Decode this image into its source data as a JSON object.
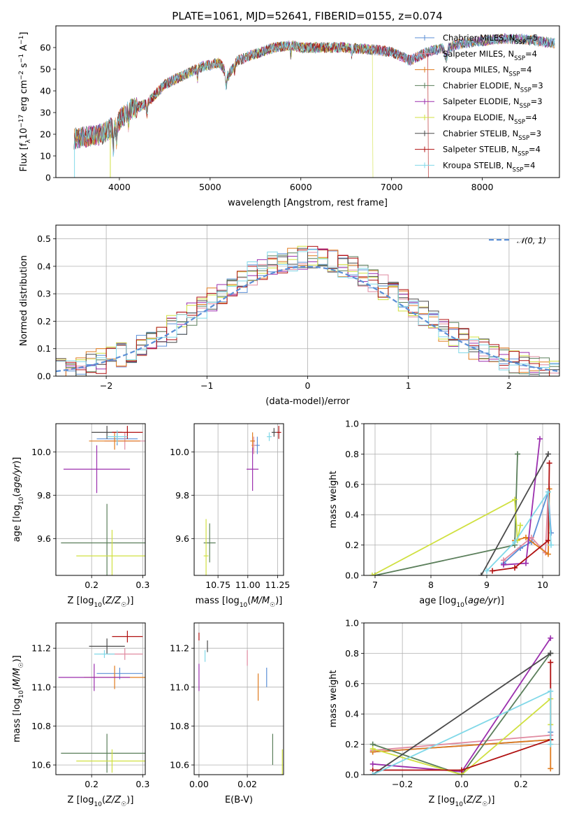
{
  "title": "PLATE=1061, MJD=52641, FIBERID=0155, z=0.074",
  "colors": {
    "chabrier_miles": "#5b8fd6",
    "salpeter_miles": "#e08aa0",
    "kroupa_miles": "#e07b1e",
    "chabrier_elodie": "#5a7e5a",
    "salpeter_elodie": "#9b2fae",
    "kroupa_elodie": "#d0e040",
    "chabrier_stelib": "#4a4a4a",
    "salpeter_stelib": "#b01010",
    "kroupa_stelib": "#80d8e8",
    "normal": "#5b8fd6"
  },
  "legend": [
    {
      "label": "Chabrier MILES, N",
      "sub": "SSP",
      "suffix": "=5",
      "color": "#5b8fd6"
    },
    {
      "label": "Salpeter MILES, N",
      "sub": "SSP",
      "suffix": "=4",
      "color": "#e08aa0"
    },
    {
      "label": "Kroupa MILES, N",
      "sub": "SSP",
      "suffix": "=4",
      "color": "#e07b1e"
    },
    {
      "label": "Chabrier ELODIE, N",
      "sub": "SSP",
      "suffix": "=3",
      "color": "#5a7e5a"
    },
    {
      "label": "Salpeter ELODIE, N",
      "sub": "SSP",
      "suffix": "=3",
      "color": "#9b2fae"
    },
    {
      "label": "Kroupa ELODIE, N",
      "sub": "SSP",
      "suffix": "=4",
      "color": "#d0e040"
    },
    {
      "label": "Chabrier STELIB, N",
      "sub": "SSP",
      "suffix": "=3",
      "color": "#4a4a4a"
    },
    {
      "label": "Salpeter STELIB, N",
      "sub": "SSP",
      "suffix": "=4",
      "color": "#b01010"
    },
    {
      "label": "Kroupa STELIB, N",
      "sub": "SSP",
      "suffix": "=4",
      "color": "#80d8e8"
    }
  ],
  "normal_label": "𝒩(0, 1)",
  "chart_data": [
    {
      "id": "spectrum",
      "type": "line",
      "xlabel": "wavelength [Angstrom, rest frame]",
      "ylabel": "Flux [f_λ10^-17 erg cm^-2 s^-1 A^-1]",
      "xlim": [
        3300,
        8850
      ],
      "ylim": [
        0,
        70
      ],
      "xticks": [
        4000,
        5000,
        6000,
        7000,
        8000
      ],
      "yticks": [
        0,
        10,
        20,
        30,
        40,
        50,
        60
      ],
      "grid": false,
      "legend_position": "right",
      "continuum": [
        [
          3500,
          18
        ],
        [
          3800,
          20
        ],
        [
          3950,
          24
        ],
        [
          4100,
          31
        ],
        [
          4300,
          34
        ],
        [
          4500,
          43
        ],
        [
          4700,
          47
        ],
        [
          4900,
          51
        ],
        [
          5100,
          53
        ],
        [
          5200,
          47
        ],
        [
          5300,
          54
        ],
        [
          5500,
          57
        ],
        [
          5700,
          60
        ],
        [
          5900,
          61
        ],
        [
          6000,
          60
        ],
        [
          6300,
          60
        ],
        [
          6500,
          60
        ],
        [
          6800,
          59
        ],
        [
          7000,
          58
        ],
        [
          7200,
          54
        ],
        [
          7400,
          58
        ],
        [
          7600,
          60
        ],
        [
          7800,
          62
        ],
        [
          8000,
          63
        ],
        [
          8200,
          64
        ],
        [
          8400,
          64
        ],
        [
          8600,
          63
        ],
        [
          8800,
          62
        ]
      ]
    },
    {
      "id": "residual_hist",
      "type": "histogram",
      "xlabel": "(data-model)/error",
      "ylabel": "Normed distribution",
      "xlim": [
        -2.5,
        2.5
      ],
      "ylim": [
        0,
        0.55
      ],
      "xticks": [
        -2,
        -1,
        0,
        1,
        2
      ],
      "yticks": [
        0,
        0.1,
        0.2,
        0.3,
        0.4,
        0.5
      ],
      "grid": true,
      "legend_position": "top-right",
      "bin_width": 0.1,
      "normal_mean": 0,
      "normal_sigma": 1
    },
    {
      "id": "age_vs_Z",
      "type": "errorbar",
      "xlabel": "Z [log10(Z/Z☉)]",
      "ylabel": "age  [log10(age/yr)]",
      "xlim": [
        0.13,
        0.305
      ],
      "ylim": [
        9.43,
        10.13
      ],
      "xticks": [
        0.2,
        0.3
      ],
      "yticks": [
        9.6,
        9.8,
        10.0
      ],
      "grid": true,
      "points": [
        {
          "series": "chabrier_miles",
          "x": 0.25,
          "xerr": 0.04,
          "y": 10.06,
          "yerr": 0.03
        },
        {
          "series": "salpeter_miles",
          "x": 0.265,
          "xerr": 0.04,
          "y": 10.05,
          "yerr": 0.04
        },
        {
          "series": "kroupa_miles",
          "x": 0.245,
          "xerr": 0.05,
          "y": 10.05,
          "yerr": 0.04
        },
        {
          "series": "chabrier_elodie",
          "x": 0.23,
          "xerr": 0.09,
          "y": 9.58,
          "yerr": 0.18
        },
        {
          "series": "salpeter_elodie",
          "x": 0.21,
          "xerr": 0.065,
          "y": 9.92,
          "yerr": 0.11
        },
        {
          "series": "kroupa_elodie",
          "x": 0.24,
          "xerr": 0.07,
          "y": 9.52,
          "yerr": 0.12
        },
        {
          "series": "chabrier_stelib",
          "x": 0.23,
          "xerr": 0.03,
          "y": 10.09,
          "yerr": 0.03
        },
        {
          "series": "salpeter_stelib",
          "x": 0.27,
          "xerr": 0.03,
          "y": 10.09,
          "yerr": 0.03
        },
        {
          "series": "kroupa_stelib",
          "x": 0.25,
          "xerr": 0.02,
          "y": 10.07,
          "yerr": 0.03
        }
      ]
    },
    {
      "id": "age_vs_mass",
      "type": "errorbar",
      "xlabel": "mass [log10(M/M☉)]",
      "ylabel": "",
      "xlim": [
        10.55,
        11.3
      ],
      "ylim": [
        9.43,
        10.13
      ],
      "xticks": [
        10.75,
        11.0,
        11.25
      ],
      "yticks": [
        9.6,
        9.8,
        10.0
      ],
      "grid": true,
      "points": [
        {
          "series": "chabrier_miles",
          "x": 11.08,
          "xerr": 0.02,
          "y": 10.03,
          "yerr": 0.04
        },
        {
          "series": "salpeter_miles",
          "x": 11.05,
          "xerr": 0.02,
          "y": 10.03,
          "yerr": 0.04
        },
        {
          "series": "kroupa_miles",
          "x": 11.04,
          "xerr": 0.02,
          "y": 10.05,
          "yerr": 0.04
        },
        {
          "series": "chabrier_elodie",
          "x": 10.68,
          "xerr": 0.05,
          "y": 9.58,
          "yerr": 0.09
        },
        {
          "series": "salpeter_elodie",
          "x": 11.04,
          "xerr": 0.05,
          "y": 9.92,
          "yerr": 0.1
        },
        {
          "series": "kroupa_elodie",
          "x": 10.65,
          "xerr": 0.02,
          "y": 9.52,
          "yerr": 0.17
        },
        {
          "series": "chabrier_stelib",
          "x": 11.22,
          "xerr": 0.02,
          "y": 10.09,
          "yerr": 0.02
        },
        {
          "series": "salpeter_stelib",
          "x": 11.26,
          "xerr": 0.02,
          "y": 10.09,
          "yerr": 0.03
        },
        {
          "series": "kroupa_stelib",
          "x": 11.18,
          "xerr": 0.02,
          "y": 10.07,
          "yerr": 0.02
        }
      ]
    },
    {
      "id": "weight_vs_age",
      "type": "line",
      "xlabel": "age  [log10(age/yr)]",
      "ylabel": "mass weight",
      "xlim": [
        6.8,
        10.3
      ],
      "ylim": [
        0,
        1.0
      ],
      "xticks": [
        7,
        8,
        9,
        10
      ],
      "yticks": [
        0,
        0.2,
        0.4,
        0.6,
        0.8,
        1.0
      ],
      "grid": true,
      "series": [
        {
          "name": "chabrier_miles",
          "points": [
            [
              9.3,
              0.08
            ],
            [
              9.6,
              0.18
            ],
            [
              9.8,
              0.22
            ],
            [
              10.1,
              0.55
            ],
            [
              10.15,
              0.28
            ]
          ]
        },
        {
          "name": "salpeter_miles",
          "points": [
            [
              9.3,
              0.1
            ],
            [
              9.8,
              0.25
            ],
            [
              10.05,
              0.15
            ],
            [
              10.1,
              0.55
            ]
          ]
        },
        {
          "name": "kroupa_miles",
          "points": [
            [
              9.5,
              0.23
            ],
            [
              9.7,
              0.25
            ],
            [
              10.1,
              0.14
            ],
            [
              10.12,
              0.57
            ]
          ]
        },
        {
          "name": "chabrier_elodie",
          "points": [
            [
              7.0,
              0.0
            ],
            [
              9.5,
              0.2
            ],
            [
              9.55,
              0.8
            ]
          ]
        },
        {
          "name": "salpeter_elodie",
          "points": [
            [
              9.3,
              0.07
            ],
            [
              9.7,
              0.08
            ],
            [
              9.95,
              0.9
            ]
          ]
        },
        {
          "name": "kroupa_elodie",
          "points": [
            [
              6.95,
              0.0
            ],
            [
              9.5,
              0.5
            ],
            [
              9.55,
              0.23
            ],
            [
              9.6,
              0.33
            ]
          ]
        },
        {
          "name": "chabrier_stelib",
          "points": [
            [
              8.9,
              0.0
            ],
            [
              10.1,
              0.8
            ]
          ]
        },
        {
          "name": "salpeter_stelib",
          "points": [
            [
              9.1,
              0.03
            ],
            [
              9.5,
              0.05
            ],
            [
              10.1,
              0.23
            ],
            [
              10.12,
              0.74
            ]
          ]
        },
        {
          "name": "kroupa_stelib",
          "points": [
            [
              9.0,
              0.03
            ],
            [
              9.5,
              0.22
            ],
            [
              10.1,
              0.55
            ],
            [
              10.15,
              0.2
            ]
          ]
        }
      ]
    },
    {
      "id": "mass_vs_Z",
      "type": "errorbar",
      "xlabel": "Z [log10(Z/Z☉)]",
      "ylabel": "mass [log10(M/M☉)]",
      "xlim": [
        0.13,
        0.305
      ],
      "ylim": [
        10.55,
        11.33
      ],
      "xticks": [
        0.2,
        0.3
      ],
      "yticks": [
        10.6,
        10.8,
        11.0,
        11.2
      ],
      "grid": true,
      "points": [
        {
          "series": "chabrier_miles",
          "x": 0.255,
          "xerr": 0.045,
          "y": 11.07,
          "yerr": 0.03
        },
        {
          "series": "salpeter_miles",
          "x": 0.265,
          "xerr": 0.035,
          "y": 11.17,
          "yerr": 0.03
        },
        {
          "series": "kroupa_miles",
          "x": 0.245,
          "xerr": 0.06,
          "y": 11.05,
          "yerr": 0.06
        },
        {
          "series": "chabrier_elodie",
          "x": 0.23,
          "xerr": 0.09,
          "y": 10.66,
          "yerr": 0.1
        },
        {
          "series": "salpeter_elodie",
          "x": 0.205,
          "xerr": 0.07,
          "y": 11.05,
          "yerr": 0.07
        },
        {
          "series": "kroupa_elodie",
          "x": 0.24,
          "xerr": 0.07,
          "y": 10.62,
          "yerr": 0.06
        },
        {
          "series": "chabrier_stelib",
          "x": 0.23,
          "xerr": 0.035,
          "y": 11.21,
          "yerr": 0.04
        },
        {
          "series": "salpeter_stelib",
          "x": 0.27,
          "xerr": 0.03,
          "y": 11.26,
          "yerr": 0.03
        },
        {
          "series": "kroupa_stelib",
          "x": 0.225,
          "xerr": 0.02,
          "y": 11.17,
          "yerr": 0.02
        }
      ]
    },
    {
      "id": "mass_vs_ebv",
      "type": "errorbar",
      "xlabel": "E(B-V)",
      "ylabel": "",
      "xlim": [
        -0.002,
        0.035
      ],
      "ylim": [
        10.55,
        11.33
      ],
      "xticks": [
        0.0,
        0.02
      ],
      "yticks": [
        10.6,
        10.8,
        11.0,
        11.2
      ],
      "grid": true,
      "points": [
        {
          "series": "chabrier_miles",
          "x": 0.028,
          "xerr": 0.0,
          "y": 11.05,
          "yerr": 0.05
        },
        {
          "series": "salpeter_miles",
          "x": 0.02,
          "xerr": 0.0,
          "y": 11.15,
          "yerr": 0.04
        },
        {
          "series": "kroupa_miles",
          "x": 0.0245,
          "xerr": 0.0,
          "y": 11.0,
          "yerr": 0.07
        },
        {
          "series": "chabrier_elodie",
          "x": 0.0305,
          "xerr": 0.0,
          "y": 10.68,
          "yerr": 0.08
        },
        {
          "series": "salpeter_elodie",
          "x": 0.0,
          "xerr": 0.0,
          "y": 11.05,
          "yerr": 0.07
        },
        {
          "series": "kroupa_elodie",
          "x": 0.0345,
          "xerr": 0.0,
          "y": 10.6,
          "yerr": 0.08
        },
        {
          "series": "chabrier_stelib",
          "x": 0.0035,
          "xerr": 0.0,
          "y": 11.21,
          "yerr": 0.03
        },
        {
          "series": "salpeter_stelib",
          "x": 0.0,
          "xerr": 0.0,
          "y": 11.26,
          "yerr": 0.02
        },
        {
          "series": "kroupa_stelib",
          "x": 0.0025,
          "xerr": 0.0,
          "y": 11.16,
          "yerr": 0.03
        }
      ]
    },
    {
      "id": "weight_vs_Z",
      "type": "line",
      "xlabel": "Z [log10(Z/Z☉)]",
      "ylabel": "mass weight",
      "xlim": [
        -0.33,
        0.33
      ],
      "ylim": [
        0,
        1.0
      ],
      "xticks": [
        -0.2,
        0.0,
        0.2
      ],
      "yticks": [
        0,
        0.2,
        0.4,
        0.6,
        0.8,
        1.0
      ],
      "grid": true,
      "series": [
        {
          "name": "chabrier_miles",
          "points": [
            [
              -0.3,
              0.15
            ],
            [
              0.3,
              0.23
            ],
            [
              0.3,
              0.28
            ]
          ]
        },
        {
          "name": "salpeter_miles",
          "points": [
            [
              -0.3,
              0.16
            ],
            [
              0.3,
              0.26
            ]
          ]
        },
        {
          "name": "kroupa_miles",
          "points": [
            [
              -0.3,
              0.15
            ],
            [
              0.3,
              0.23
            ],
            [
              0.3,
              0.04
            ]
          ]
        },
        {
          "name": "chabrier_elodie",
          "points": [
            [
              -0.3,
              0.2
            ],
            [
              0.0,
              0.0
            ],
            [
              0.3,
              0.8
            ]
          ]
        },
        {
          "name": "salpeter_elodie",
          "points": [
            [
              -0.3,
              0.07
            ],
            [
              0.0,
              0.02
            ],
            [
              0.3,
              0.9
            ]
          ]
        },
        {
          "name": "kroupa_elodie",
          "points": [
            [
              -0.3,
              0.17
            ],
            [
              0.0,
              0.0
            ],
            [
              0.3,
              0.5
            ],
            [
              0.3,
              0.33
            ]
          ]
        },
        {
          "name": "chabrier_stelib",
          "points": [
            [
              -0.3,
              0.0
            ],
            [
              0.3,
              0.8
            ]
          ]
        },
        {
          "name": "salpeter_stelib",
          "points": [
            [
              -0.3,
              0.03
            ],
            [
              0.0,
              0.03
            ],
            [
              0.3,
              0.23
            ],
            [
              0.3,
              0.74
            ]
          ]
        },
        {
          "name": "kroupa_stelib",
          "points": [
            [
              -0.3,
              0.0
            ],
            [
              0.3,
              0.55
            ],
            [
              0.3,
              0.2
            ]
          ]
        }
      ]
    }
  ]
}
